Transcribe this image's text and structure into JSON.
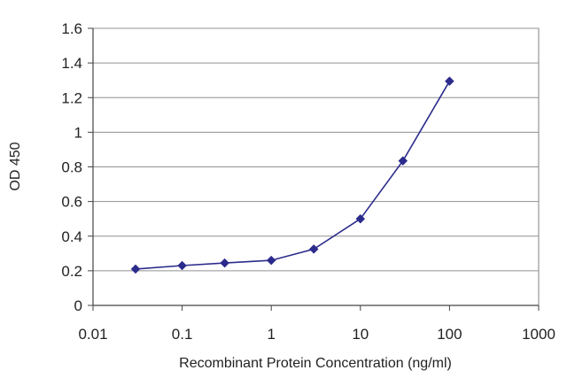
{
  "chart_data": {
    "type": "line",
    "title": "",
    "xlabel": "Recombinant Protein Concentration (ng/ml)",
    "ylabel": "OD 450",
    "x_scale": "log",
    "xlim": [
      0.01,
      1000
    ],
    "ylim": [
      0,
      1.6
    ],
    "x_ticks": [
      0.01,
      0.1,
      1,
      10,
      100,
      1000
    ],
    "x_tick_labels": [
      "0.01",
      "0.1",
      "1",
      "10",
      "100",
      "1000"
    ],
    "y_ticks": [
      0,
      0.2,
      0.4,
      0.6,
      0.8,
      1,
      1.2,
      1.4,
      1.6
    ],
    "y_tick_labels": [
      "0",
      "0.2",
      "0.4",
      "0.6",
      "0.8",
      "1",
      "1.2",
      "1.4",
      "1.6"
    ],
    "grid": "horizontal",
    "legend": "none",
    "series": [
      {
        "color": "#2b2b8c",
        "marker": "diamond",
        "x": [
          0.03,
          0.1,
          0.3,
          1,
          3,
          10,
          30,
          100
        ],
        "values": [
          0.21,
          0.23,
          0.245,
          0.26,
          0.325,
          0.5,
          0.835,
          1.295
        ]
      }
    ]
  }
}
